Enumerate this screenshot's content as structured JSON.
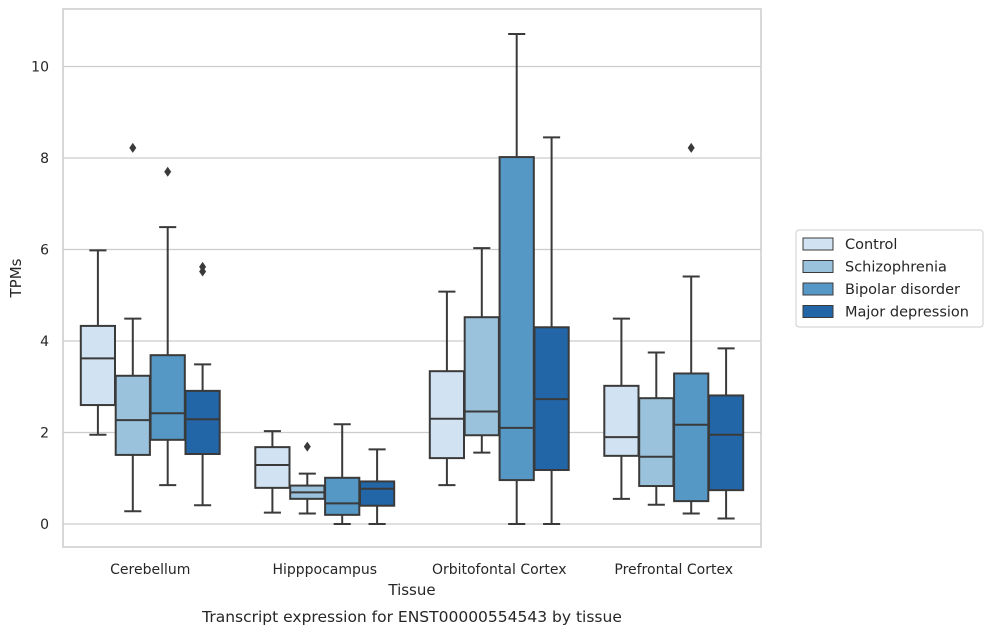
{
  "chart_data": {
    "type": "box",
    "caption": "Transcript expression for ENST00000554543 by tissue",
    "xlabel": "Tissue",
    "ylabel": "TPMs",
    "ylim": [
      -0.5,
      11.3
    ],
    "yticks": [
      0,
      2,
      4,
      6,
      8,
      10
    ],
    "grid": true,
    "legend_placement": "right-center",
    "categories": [
      "Cerebellum",
      "Hipppocampus",
      "Orbitofontal Cortex",
      "Prefrontal Cortex"
    ],
    "series": [
      {
        "name": "Control",
        "color": "#d1e2f2",
        "boxes": [
          {
            "whislo": 1.95,
            "q1": 2.6,
            "med": 3.62,
            "q3": 4.33,
            "whishi": 5.98,
            "fliers": []
          },
          {
            "whislo": 0.25,
            "q1": 0.79,
            "med": 1.29,
            "q3": 1.68,
            "whishi": 2.03,
            "fliers": []
          },
          {
            "whislo": 0.85,
            "q1": 1.44,
            "med": 2.3,
            "q3": 3.34,
            "whishi": 5.08,
            "fliers": []
          },
          {
            "whislo": 0.55,
            "q1": 1.49,
            "med": 1.9,
            "q3": 3.02,
            "whishi": 4.49,
            "fliers": []
          }
        ]
      },
      {
        "name": "Schizophrenia",
        "color": "#9ac2dc",
        "boxes": [
          {
            "whislo": 0.28,
            "q1": 1.51,
            "med": 2.27,
            "q3": 3.24,
            "whishi": 4.49,
            "fliers": [
              8.22
            ]
          },
          {
            "whislo": 0.23,
            "q1": 0.55,
            "med": 0.69,
            "q3": 0.84,
            "whishi": 1.1,
            "fliers": [
              1.69
            ]
          },
          {
            "whislo": 1.56,
            "q1": 1.94,
            "med": 2.46,
            "q3": 4.52,
            "whishi": 6.03,
            "fliers": []
          },
          {
            "whislo": 0.42,
            "q1": 0.83,
            "med": 1.47,
            "q3": 2.75,
            "whishi": 3.75,
            "fliers": []
          }
        ]
      },
      {
        "name": "Bipolar disorder",
        "color": "#5598c6",
        "boxes": [
          {
            "whislo": 0.85,
            "q1": 1.84,
            "med": 2.42,
            "q3": 3.69,
            "whishi": 6.49,
            "fliers": [
              7.7
            ]
          },
          {
            "whislo": 0.0,
            "q1": 0.2,
            "med": 0.45,
            "q3": 1.01,
            "whishi": 2.18,
            "fliers": []
          },
          {
            "whislo": 0.0,
            "q1": 0.96,
            "med": 2.1,
            "q3": 8.02,
            "whishi": 10.71,
            "fliers": []
          },
          {
            "whislo": 0.23,
            "q1": 0.5,
            "med": 2.17,
            "q3": 3.29,
            "whishi": 5.41,
            "fliers": [
              8.22
            ]
          }
        ]
      },
      {
        "name": "Major depression",
        "color": "#2366a8",
        "boxes": [
          {
            "whislo": 0.41,
            "q1": 1.53,
            "med": 2.29,
            "q3": 2.91,
            "whishi": 3.49,
            "fliers": [
              5.52,
              5.62
            ]
          },
          {
            "whislo": 0.0,
            "q1": 0.4,
            "med": 0.77,
            "q3": 0.93,
            "whishi": 1.63,
            "fliers": []
          },
          {
            "whislo": 0.0,
            "q1": 1.18,
            "med": 2.73,
            "q3": 4.3,
            "whishi": 8.45,
            "fliers": []
          },
          {
            "whislo": 0.12,
            "q1": 0.74,
            "med": 1.95,
            "q3": 2.81,
            "whishi": 3.84,
            "fliers": []
          }
        ]
      }
    ]
  }
}
